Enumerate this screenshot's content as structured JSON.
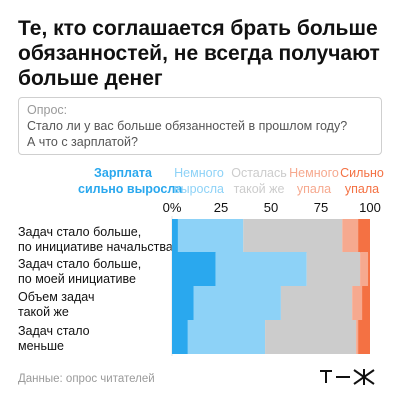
{
  "title": {
    "line1": "Те, кто соглашается брать больше",
    "line2": "обязанностей, не всегда получают",
    "line3": "больше денег"
  },
  "survey": {
    "label": "Опрос:",
    "question_line1": "Стало ли у вас больше обязанностей в прошлом году?",
    "question_line2": "А что с зарплатой?"
  },
  "colors": {
    "strong_up": "#2aa8ee",
    "up": "#8dd2f7",
    "same": "#cccccc",
    "down": "#f6a98f",
    "strong_down": "#f47143"
  },
  "chart_data": {
    "type": "bar",
    "orientation": "horizontal",
    "stacked": true,
    "xlim": [
      0,
      100
    ],
    "x_ticks": [
      "0%",
      "25",
      "50",
      "75",
      "100"
    ],
    "categories": [
      [
        "Задач стало больше,",
        "по инициативе начальства"
      ],
      [
        "Задач стало больше,",
        "по моей инициативе"
      ],
      [
        "Объем задач",
        "такой же"
      ],
      [
        "Задач стало",
        "меньше"
      ]
    ],
    "series": [
      {
        "name": [
          "Зарплата",
          "сильно выросла"
        ],
        "color_key": "strong_up",
        "values": [
          3,
          22,
          11,
          8
        ]
      },
      {
        "name": [
          "Немного",
          "выросла"
        ],
        "color_key": "up",
        "values": [
          33,
          46,
          44,
          39
        ]
      },
      {
        "name": [
          "Осталась",
          "такой же"
        ],
        "color_key": "same",
        "values": [
          50,
          27,
          36,
          46
        ]
      },
      {
        "name": [
          "Немного",
          "упала"
        ],
        "color_key": "down",
        "values": [
          8,
          4,
          5,
          1
        ]
      },
      {
        "name": [
          "Сильно",
          "упала"
        ],
        "color_key": "strong_down",
        "values": [
          6,
          1,
          4,
          6
        ]
      }
    ]
  },
  "source": "Данные: опрос читателей",
  "logo": "т—ж"
}
